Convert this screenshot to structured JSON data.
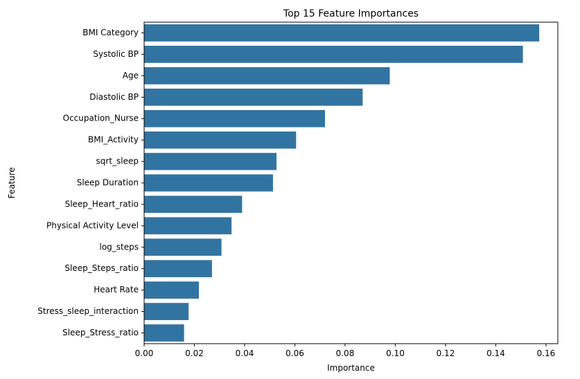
{
  "chart_data": {
    "type": "bar",
    "orientation": "horizontal",
    "title": "Top 15 Feature Importances",
    "xlabel": "Importance",
    "ylabel": "Feature",
    "xlim": [
      0,
      0.1647
    ],
    "xticks": [
      0.0,
      0.02,
      0.04,
      0.06,
      0.08,
      0.1,
      0.12,
      0.14,
      0.16
    ],
    "xtick_labels": [
      "0.00",
      "0.02",
      "0.04",
      "0.06",
      "0.08",
      "0.10",
      "0.12",
      "0.14",
      "0.16"
    ],
    "grid": false,
    "bar_color": "#3274a1",
    "categories": [
      "BMI Category",
      "Systolic BP",
      "Age",
      "Diastolic BP",
      "Occupation_Nurse",
      "BMI_Activity",
      "sqrt_sleep",
      "Sleep Duration",
      "Sleep_Heart_ratio",
      "Physical Activity Level",
      "log_steps",
      "Sleep_Steps_ratio",
      "Heart Rate",
      "Stress_sleep_interaction",
      "Sleep_Stress_ratio"
    ],
    "values": [
      0.1573,
      0.1508,
      0.0978,
      0.087,
      0.072,
      0.0605,
      0.0527,
      0.0513,
      0.039,
      0.0348,
      0.0308,
      0.027,
      0.0218,
      0.0177,
      0.0159
    ]
  }
}
